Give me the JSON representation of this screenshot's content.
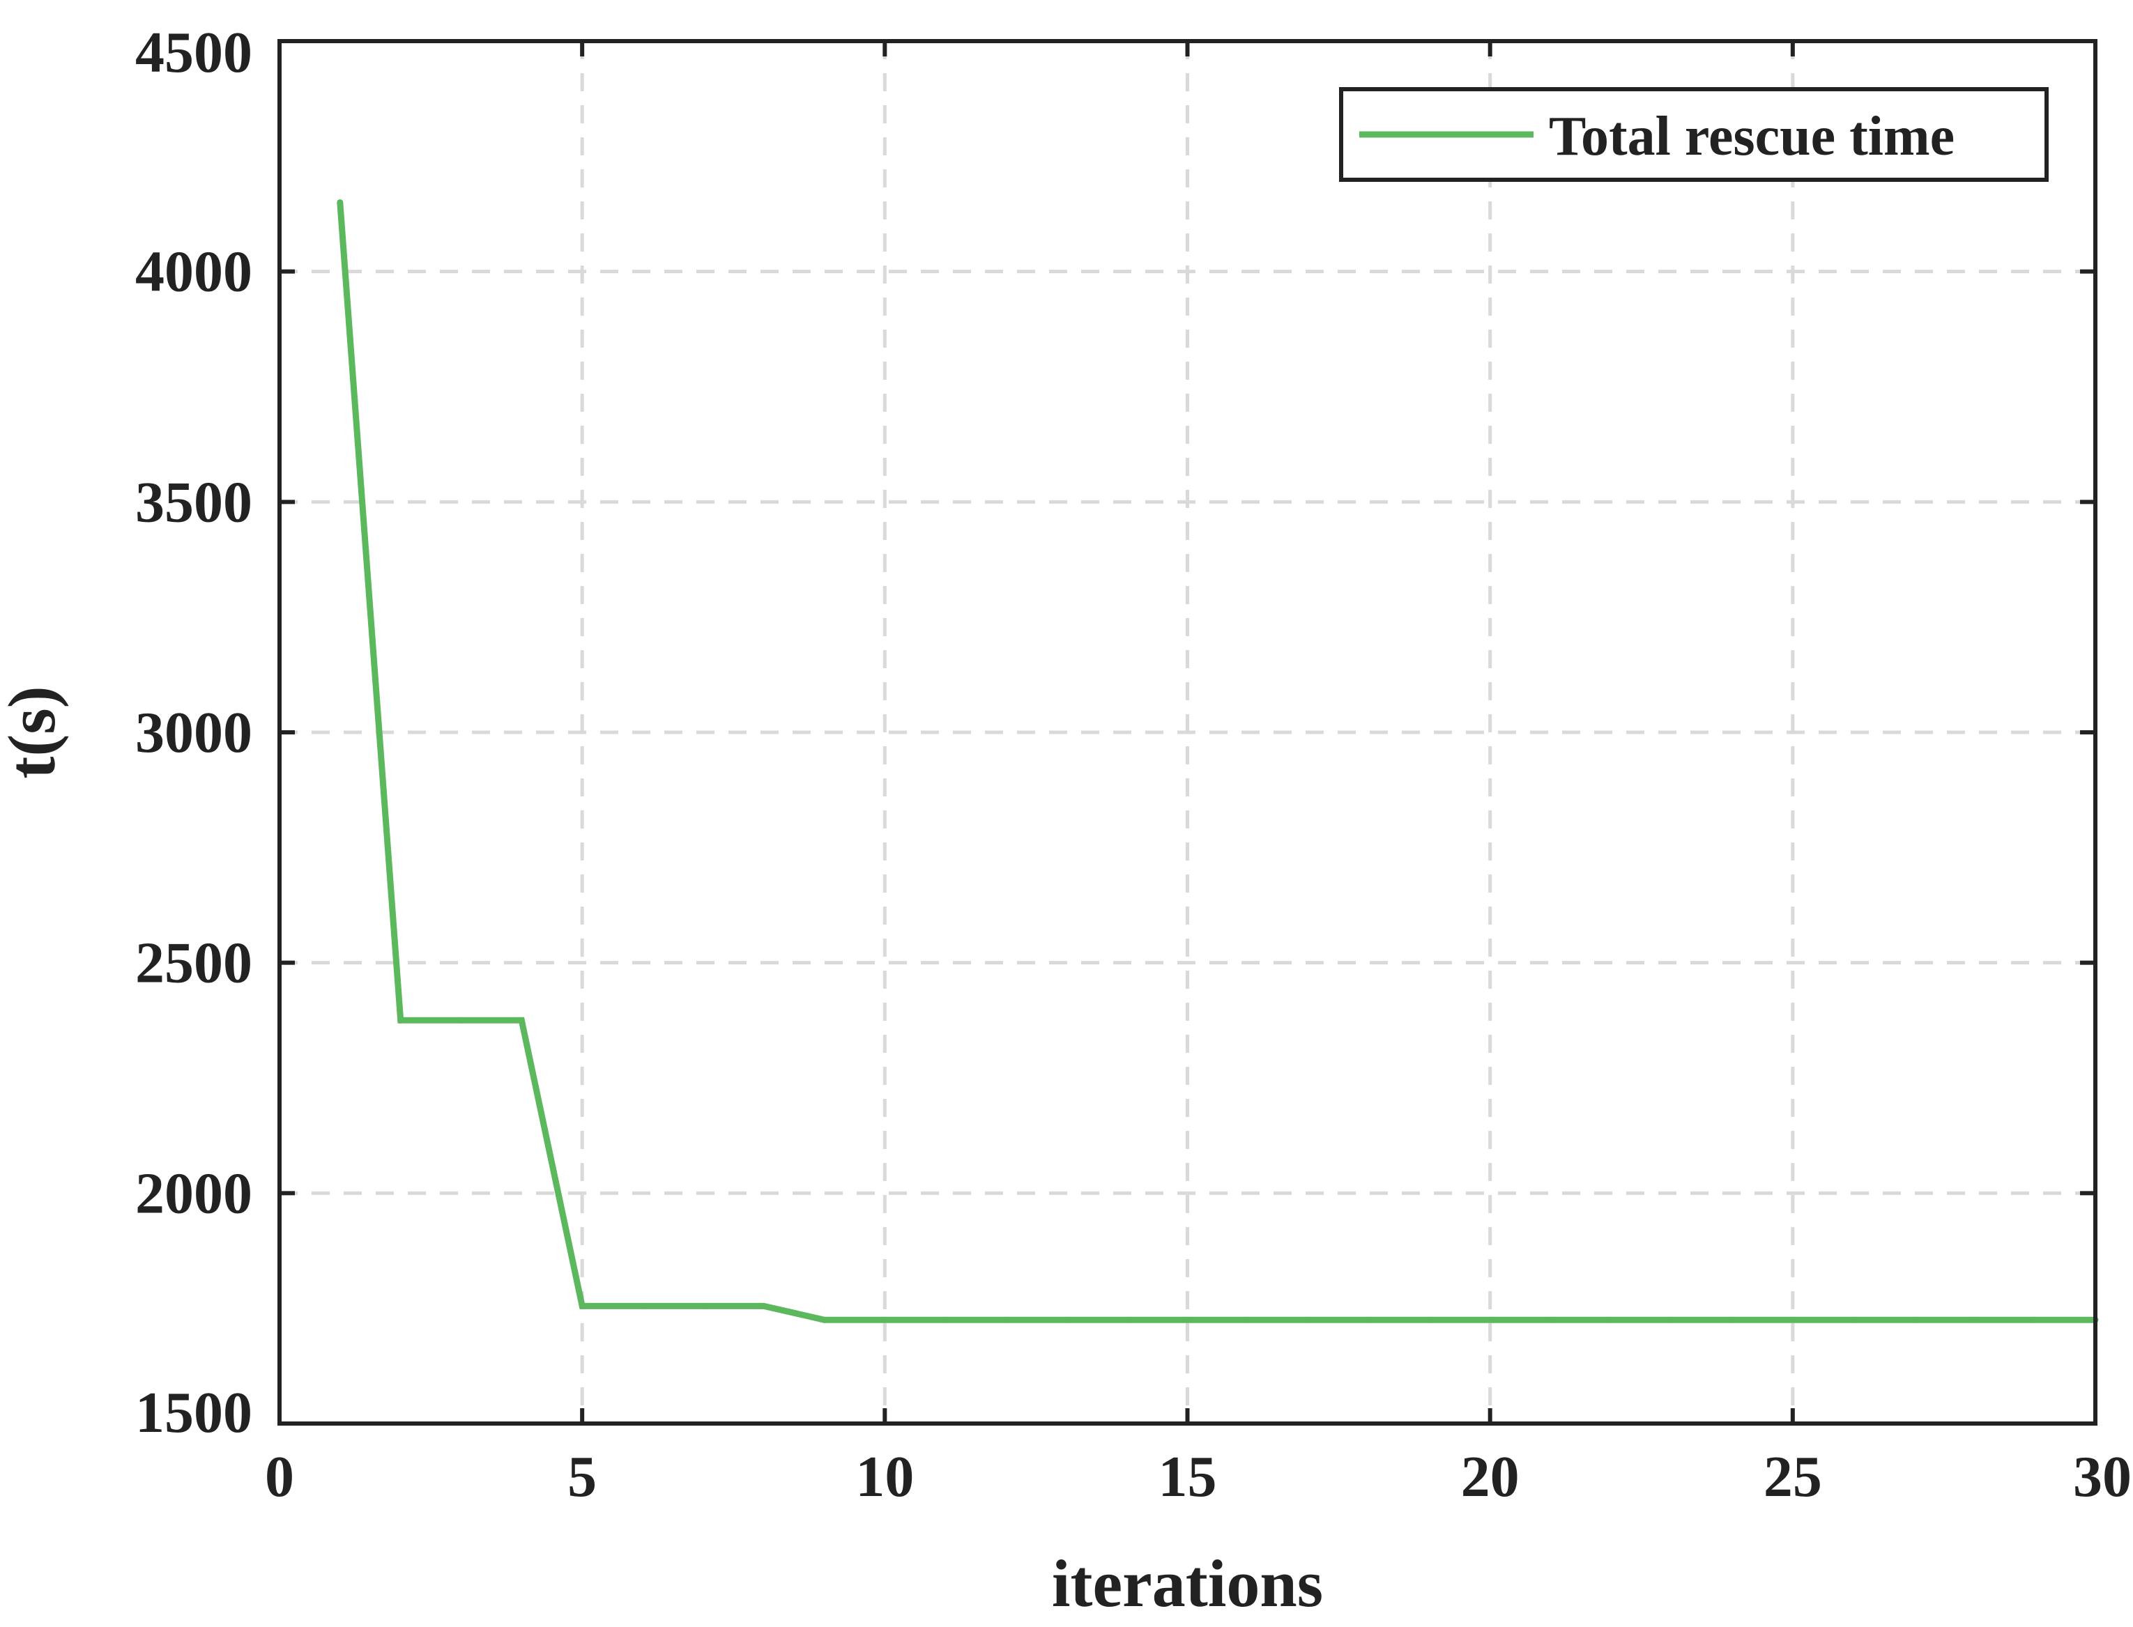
{
  "chart_data": {
    "type": "line",
    "title": "",
    "xlabel": "iterations",
    "ylabel": "t(s)",
    "xlim": [
      0,
      30
    ],
    "ylim": [
      1500,
      4500
    ],
    "x_ticks": [
      0,
      5,
      10,
      15,
      20,
      25,
      30
    ],
    "y_ticks": [
      1500,
      2000,
      2500,
      3000,
      3500,
      4000,
      4500
    ],
    "x_tick_labels": [
      "0",
      "5",
      "10",
      "15",
      "20",
      "25",
      "30"
    ],
    "y_tick_labels": [
      "1500",
      "2000",
      "2500",
      "3000",
      "3500",
      "4000",
      "4500"
    ],
    "grid": true,
    "legend_position": "top-right",
    "series": [
      {
        "name": "Total rescue time",
        "color": "#5cb85c",
        "x": [
          1,
          2,
          3,
          4,
          5,
          6,
          7,
          8,
          9,
          10,
          11,
          12,
          13,
          14,
          15,
          16,
          17,
          18,
          19,
          20,
          21,
          22,
          23,
          24,
          25,
          26,
          27,
          28,
          29,
          30
        ],
        "y": [
          4150,
          2375,
          2375,
          2375,
          1755,
          1755,
          1755,
          1755,
          1725,
          1725,
          1725,
          1725,
          1725,
          1725,
          1725,
          1725,
          1725,
          1725,
          1725,
          1725,
          1725,
          1725,
          1725,
          1725,
          1725,
          1725,
          1725,
          1725,
          1725,
          1725
        ]
      }
    ]
  }
}
